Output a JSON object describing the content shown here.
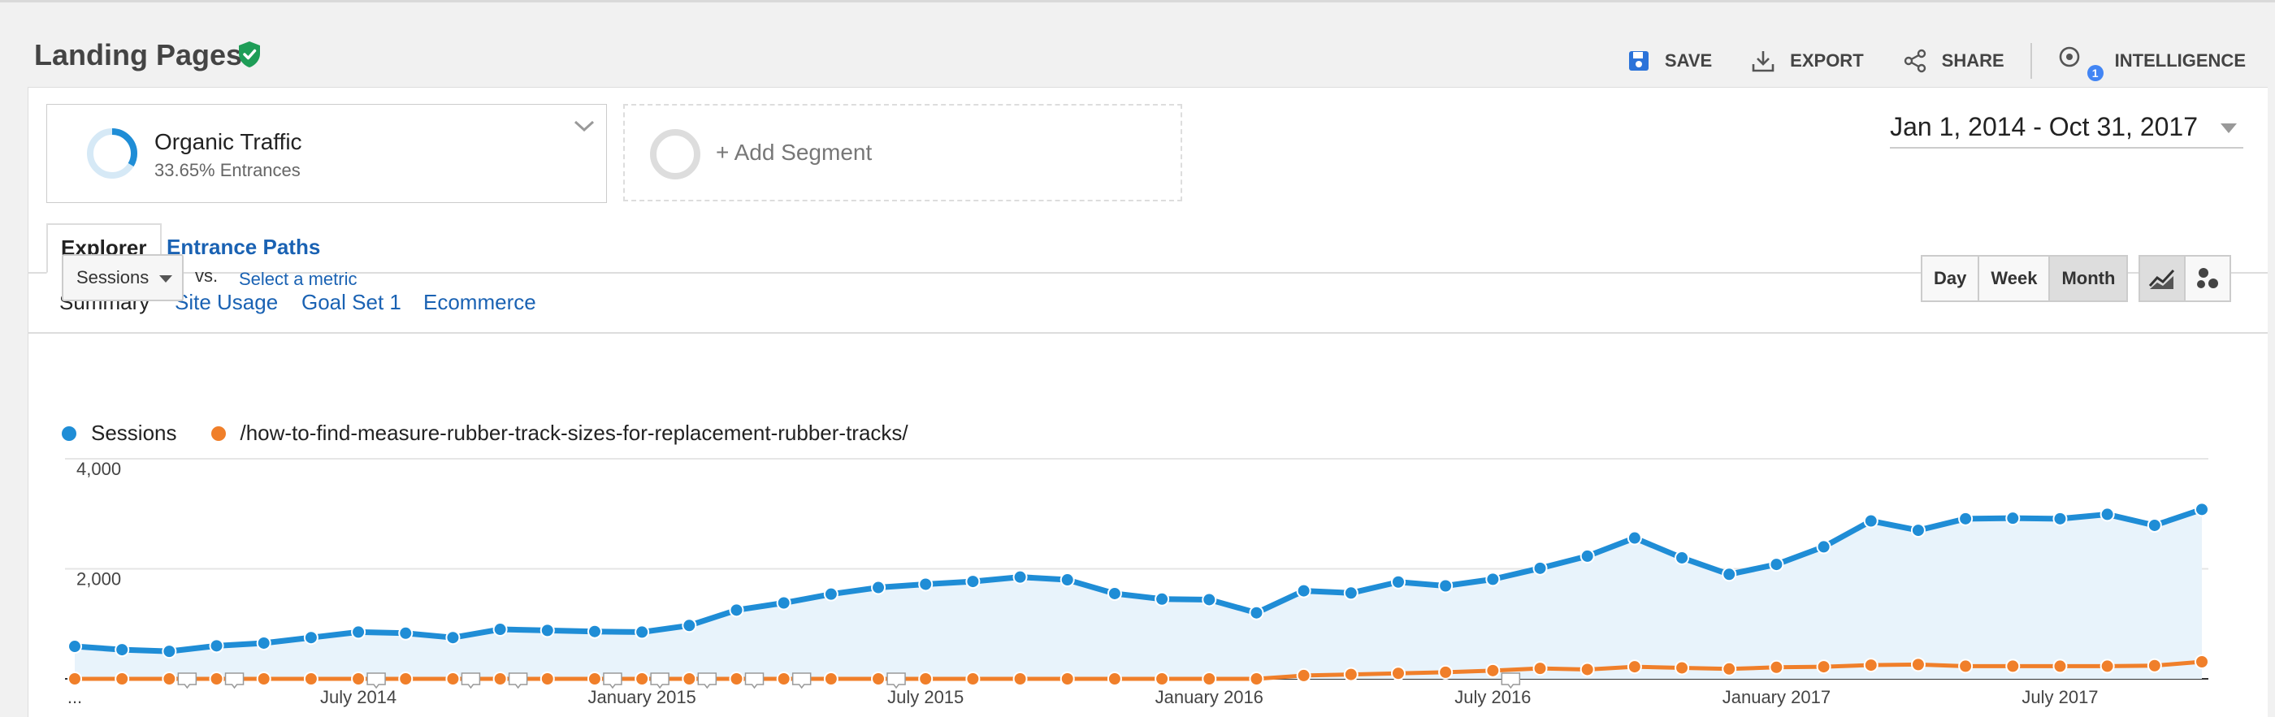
{
  "header": {
    "title": "Landing Pages",
    "actions": {
      "save": "SAVE",
      "export": "EXPORT",
      "share": "SHARE",
      "intelligence": "INTELLIGENCE",
      "intelligence_badge": "1"
    }
  },
  "segments": {
    "active": {
      "name": "Organic Traffic",
      "subtitle": "33.65% Entrances"
    },
    "add_label": "+ Add Segment"
  },
  "date_range": "Jan 1, 2014 - Oct 31, 2017",
  "tabs": {
    "explorer": "Explorer",
    "entrance_paths": "Entrance Paths"
  },
  "subtabs": [
    "Summary",
    "Site Usage",
    "Goal Set 1",
    "Ecommerce"
  ],
  "metric_controls": {
    "primary_metric": "Sessions",
    "vs": "vs.",
    "select_metric": "Select a metric",
    "granularity": [
      "Day",
      "Week",
      "Month"
    ],
    "granularity_selected": "Month"
  },
  "colors": {
    "sessions": "#1f8dd6",
    "page": "#f07f2a",
    "link": "#1a62b3",
    "badge": "#4285f4",
    "shield": "#1e9d57"
  },
  "chart_data": {
    "type": "line",
    "y_tick_labels": [
      "4,000",
      "2,000"
    ],
    "ylim": [
      0,
      4000
    ],
    "x_tick_labels": [
      "...",
      "July 2014",
      "January 2015",
      "July 2015",
      "January 2016",
      "July 2016",
      "January 2017",
      "July 2017"
    ],
    "x_tick_months": [
      0,
      6,
      12,
      18,
      24,
      30,
      36,
      42
    ],
    "grid": true,
    "legend": "top-left",
    "series": [
      {
        "name": "Sessions",
        "area": true,
        "values": [
          590,
          530,
          500,
          600,
          650,
          750,
          850,
          830,
          750,
          900,
          880,
          860,
          850,
          970,
          1250,
          1380,
          1540,
          1660,
          1720,
          1770,
          1850,
          1800,
          1550,
          1450,
          1440,
          1200,
          1600,
          1560,
          1760,
          1690,
          1810,
          2010,
          2230,
          2560,
          2200,
          1900,
          2080,
          2400,
          2870,
          2700,
          2910,
          2920,
          2910,
          2990,
          2790,
          3080
        ]
      },
      {
        "name": "/how-to-find-measure-rubber-track-sizes-for-replacement-rubber-tracks/",
        "area": false,
        "values": [
          0,
          0,
          0,
          0,
          0,
          0,
          0,
          0,
          0,
          0,
          0,
          0,
          0,
          0,
          0,
          0,
          0,
          0,
          0,
          0,
          0,
          0,
          0,
          0,
          0,
          0,
          60,
          80,
          100,
          120,
          150,
          190,
          170,
          220,
          200,
          180,
          210,
          220,
          250,
          260,
          230,
          230,
          230,
          230,
          240,
          310
        ]
      }
    ],
    "annotation_marker_months": [
      2,
      3,
      6,
      8,
      9,
      11,
      12,
      13,
      14,
      15,
      17,
      30
    ]
  }
}
